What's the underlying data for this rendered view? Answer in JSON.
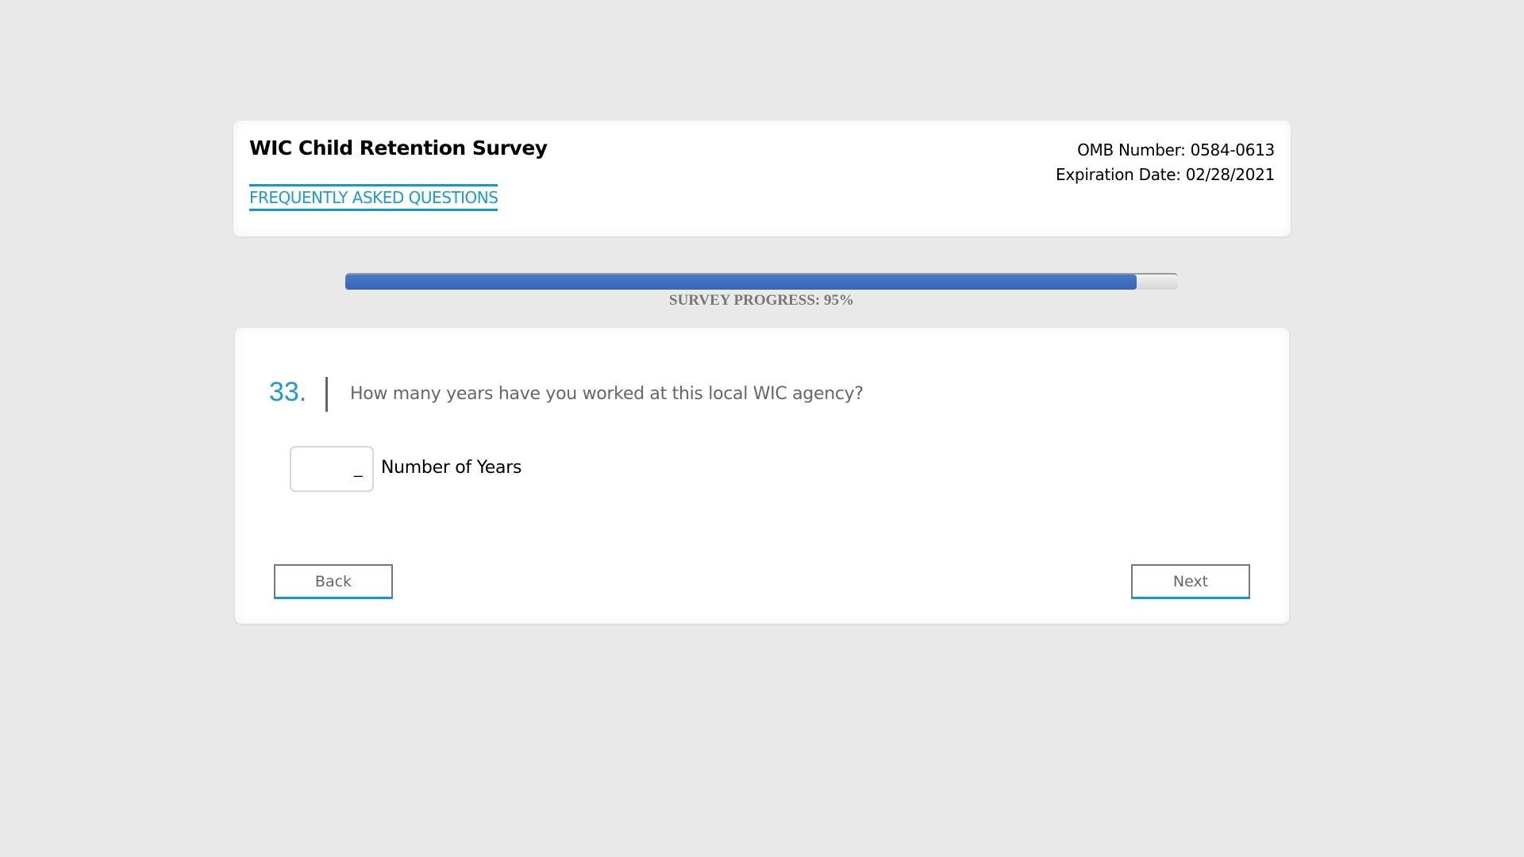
{
  "header": {
    "title": "WIC Child Retention Survey",
    "faq_link": "FREQUENTLY ASKED QUESTIONS",
    "omb_number": "OMB Number: 0584-0613",
    "expiration_date": "Expiration Date: 02/28/2021"
  },
  "progress": {
    "percent": 95,
    "label": "SURVEY PROGRESS: 95%"
  },
  "question": {
    "number": "33.",
    "text": "How many years have you worked at this local WIC agency?",
    "input_value": "_",
    "input_label": "Number of Years"
  },
  "nav": {
    "back_label": "Back",
    "next_label": "Next"
  },
  "colors": {
    "accent": "#1a9ad6",
    "progress_fill": "#3f70c0",
    "background": "#e9e9e9"
  }
}
